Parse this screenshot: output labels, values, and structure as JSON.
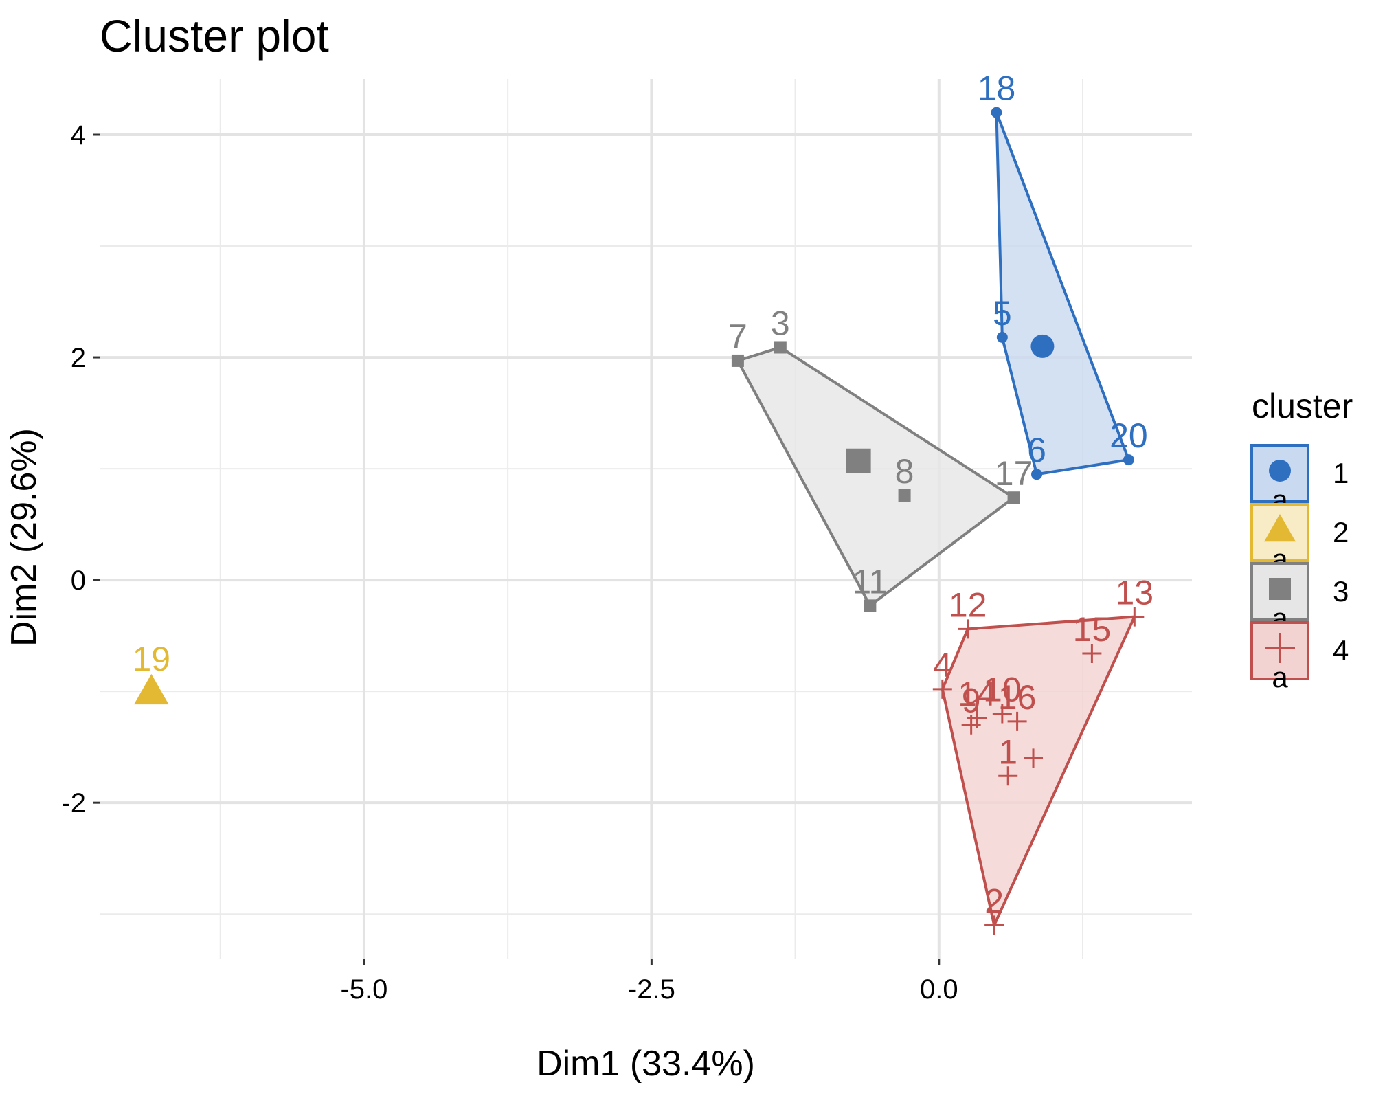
{
  "chart_data": {
    "type": "scatter",
    "title": "Cluster plot",
    "xlabel": "Dim1 (33.4%)",
    "ylabel": "Dim2 (29.6%)",
    "xlim": [
      -7.3,
      2.2
    ],
    "ylim": [
      -3.4,
      4.5
    ],
    "x_ticks": [
      {
        "value": -5.0,
        "label": "-5.0"
      },
      {
        "value": -2.5,
        "label": "-2.5"
      },
      {
        "value": 0.0,
        "label": "0.0"
      }
    ],
    "y_ticks": [
      {
        "value": 4,
        "label": "4"
      },
      {
        "value": 2,
        "label": "2"
      },
      {
        "value": 0,
        "label": "0"
      },
      {
        "value": -2,
        "label": "-2"
      }
    ],
    "minor_x_gridlines": [
      -6.25,
      -3.75,
      -1.25,
      1.25
    ],
    "minor_y_gridlines": [
      3,
      1,
      -1,
      -3
    ],
    "grid": true,
    "legend": {
      "title": "cluster",
      "position": "right",
      "key_letter": "a"
    },
    "clusters": [
      {
        "name": "1",
        "color": "#2e6fc0",
        "fill": "#c9d9f0",
        "shape": "circle",
        "centroid": {
          "x": 0.9,
          "y": 2.1
        },
        "hull": [
          "18",
          "20",
          "6",
          "5"
        ],
        "points": [
          {
            "label": "18",
            "x": 0.5,
            "y": 4.2
          },
          {
            "label": "5",
            "x": 0.55,
            "y": 2.18
          },
          {
            "label": "6",
            "x": 0.85,
            "y": 0.95
          },
          {
            "label": "20",
            "x": 1.65,
            "y": 1.08
          }
        ]
      },
      {
        "name": "2",
        "color": "#e3b933",
        "fill": "#f7ecc6",
        "shape": "triangle",
        "centroid": {
          "x": -6.85,
          "y": -1.0
        },
        "hull": [],
        "points": [
          {
            "label": "19",
            "x": -6.85,
            "y": -1.0
          }
        ]
      },
      {
        "name": "3",
        "color": "#808080",
        "fill": "#e6e6e6",
        "shape": "square",
        "centroid": {
          "x": -0.7,
          "y": 1.07
        },
        "hull": [
          "7",
          "3",
          "17",
          "11"
        ],
        "points": [
          {
            "label": "7",
            "x": -1.75,
            "y": 1.97
          },
          {
            "label": "3",
            "x": -1.38,
            "y": 2.09
          },
          {
            "label": "8",
            "x": -0.3,
            "y": 0.76
          },
          {
            "label": "17",
            "x": 0.65,
            "y": 0.74
          },
          {
            "label": "11",
            "x": -0.6,
            "y": -0.23
          }
        ]
      },
      {
        "name": "4",
        "color": "#c0504d",
        "fill": "#f2d3d2",
        "shape": "plus",
        "centroid": null,
        "hull": [
          "12",
          "13",
          "2",
          "4"
        ],
        "points": [
          {
            "label": "12",
            "x": 0.25,
            "y": -0.44
          },
          {
            "label": "13",
            "x": 1.7,
            "y": -0.33
          },
          {
            "label": "15",
            "x": 1.33,
            "y": -0.66
          },
          {
            "label": "4",
            "x": 0.03,
            "y": -0.98
          },
          {
            "label": "9",
            "x": 0.28,
            "y": -1.3
          },
          {
            "label": "14",
            "x": 0.33,
            "y": -1.24
          },
          {
            "label": "10",
            "x": 0.55,
            "y": -1.2
          },
          {
            "label": "16",
            "x": 0.68,
            "y": -1.27
          },
          {
            "label": "1",
            "x": 0.6,
            "y": -1.76
          },
          {
            "label": "",
            "x": 0.82,
            "y": -1.6
          },
          {
            "label": "2",
            "x": 0.48,
            "y": -3.1
          }
        ]
      }
    ]
  }
}
